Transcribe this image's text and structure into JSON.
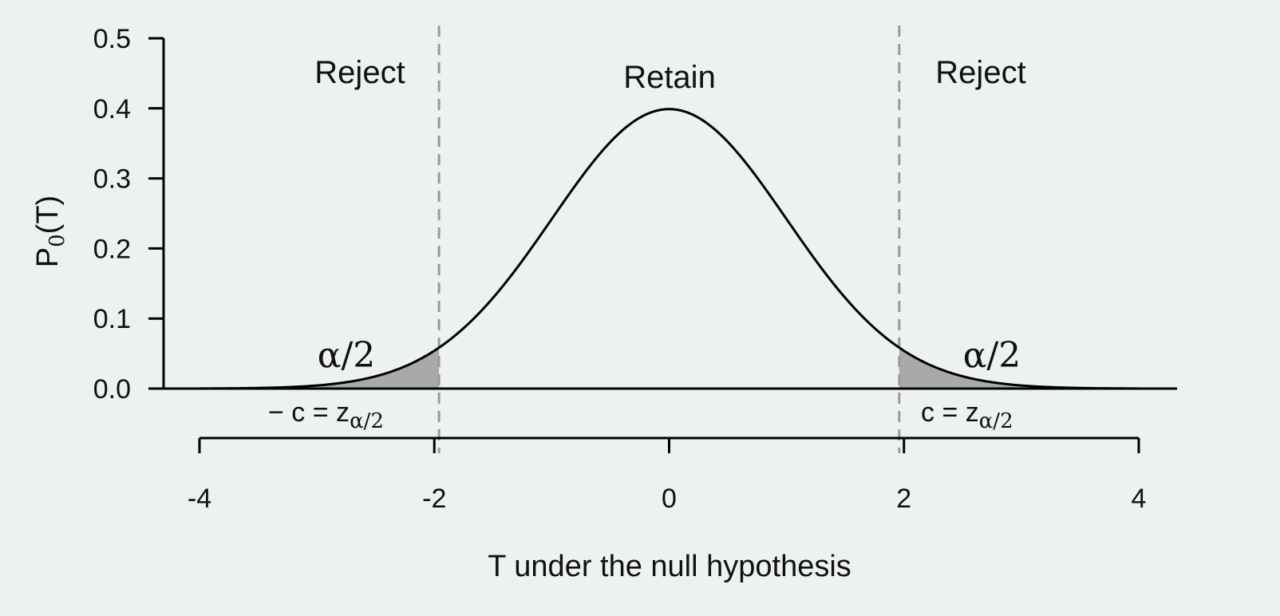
{
  "chart_data": {
    "type": "area",
    "distribution": "standard normal density",
    "x_range": [
      -4.0,
      4.0
    ],
    "y_ticks": [
      "0.0",
      "0.1",
      "0.2",
      "0.3",
      "0.4",
      "0.5"
    ],
    "y_tick_values": [
      0.0,
      0.1,
      0.2,
      0.3,
      0.4,
      0.5
    ],
    "ylim": [
      0.0,
      0.5
    ],
    "ylabel_base": "P",
    "ylabel_sub": "0",
    "ylabel_arg": "(T)",
    "x_ticks": [
      "-4",
      "-2",
      "0",
      "2",
      "4"
    ],
    "x_tick_values": [
      -4,
      -2,
      0,
      2,
      4
    ],
    "xlabel": "T under the null hypothesis",
    "critical_values": [
      -1.96,
      1.96
    ],
    "peak_density": 0.399,
    "regions": [
      {
        "label": "Reject"
      },
      {
        "label": "Retain"
      },
      {
        "label": "Reject"
      }
    ],
    "tail_label": "α/2",
    "left_critical_label": {
      "main": "− c = z",
      "sub": "α/2"
    },
    "right_critical_label": {
      "main": "c = z",
      "sub": "α/2"
    },
    "colors": {
      "curve": "#000000",
      "tail_fill": "#a9a9a9",
      "critical_line": "#999999",
      "background": "#edf1f2"
    },
    "grid": false
  }
}
